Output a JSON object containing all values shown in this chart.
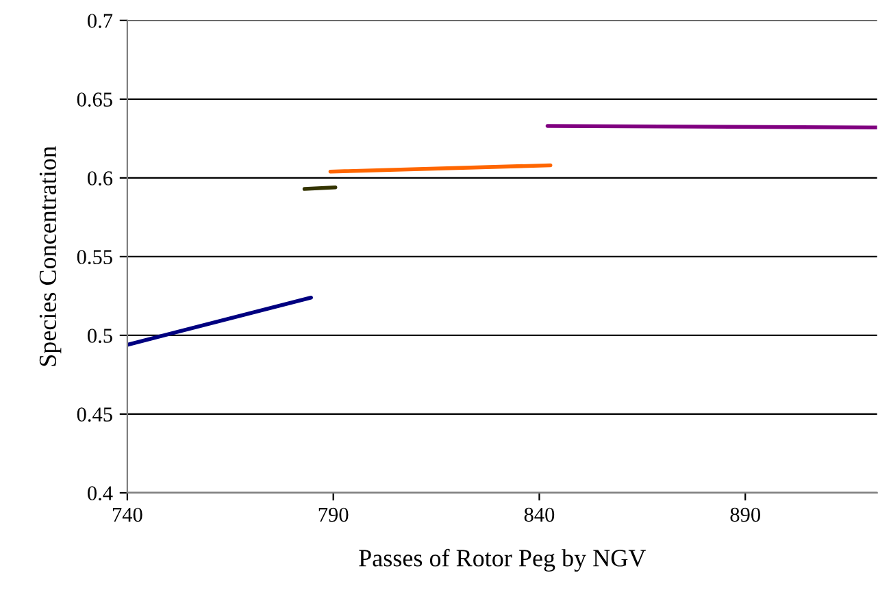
{
  "chart_data": {
    "type": "line",
    "xlabel": "Passes of Rotor Peg by NGV",
    "ylabel": "Species Concentration",
    "series": [
      {
        "color": "#000080",
        "x": [
          740,
          784.6
        ],
        "values": [
          0.494,
          0.524
        ]
      },
      {
        "color": "#333300",
        "x": [
          783,
          790.5
        ],
        "values": [
          0.593,
          0.594
        ]
      },
      {
        "color": "#ff6600",
        "x": [
          789.3,
          842.7
        ],
        "values": [
          0.604,
          0.608
        ]
      },
      {
        "color": "#800080",
        "x": [
          842,
          922
        ],
        "values": [
          0.633,
          0.632
        ]
      }
    ],
    "xlim": [
      740,
      922
    ],
    "xticks": [
      740,
      790,
      840,
      890
    ],
    "ylim": [
      0.4,
      0.7
    ],
    "yticks": [
      0.4,
      0.45,
      0.5,
      0.55,
      0.6,
      0.65,
      0.7
    ],
    "grid": "y",
    "marker": "none",
    "line_style": "solid"
  }
}
